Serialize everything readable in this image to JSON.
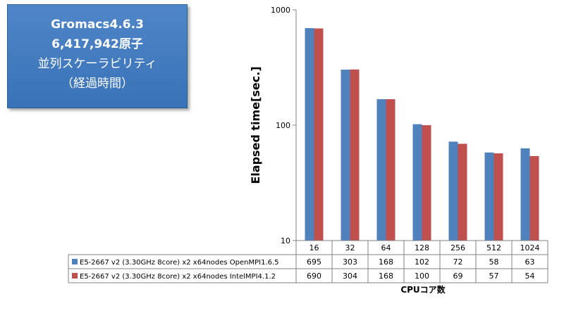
{
  "title_box": {
    "line1": "Gromacs4.6.3",
    "line2": "6,417,942原子",
    "line3": "並列スケーラビリティ",
    "line4": "（経過時間）"
  },
  "chart_data": {
    "type": "bar",
    "ylabel": "Elapsed time[sec.]",
    "xlabel": "CPUコア数",
    "y_scale": "log",
    "ylim": [
      10,
      1000
    ],
    "y_ticks": [
      "10",
      "100",
      "1000"
    ],
    "categories": [
      "16",
      "32",
      "64",
      "128",
      "256",
      "512",
      "1024"
    ],
    "series": [
      {
        "name": "E5-2667 v2 (3.30GHz 8core) x2 x64nodes OpenMPI1.6.5",
        "color": "#4f81bd",
        "values": [
          695,
          303,
          168,
          102,
          72,
          58,
          63
        ]
      },
      {
        "name": "E5-2667 v2 (3.30GHz 8core) x2 x64nodes IntelMPI4.1.2",
        "color": "#c0504d",
        "values": [
          690,
          304,
          168,
          100,
          69,
          57,
          54
        ]
      }
    ],
    "grid": false,
    "legend": "data table below chart"
  }
}
